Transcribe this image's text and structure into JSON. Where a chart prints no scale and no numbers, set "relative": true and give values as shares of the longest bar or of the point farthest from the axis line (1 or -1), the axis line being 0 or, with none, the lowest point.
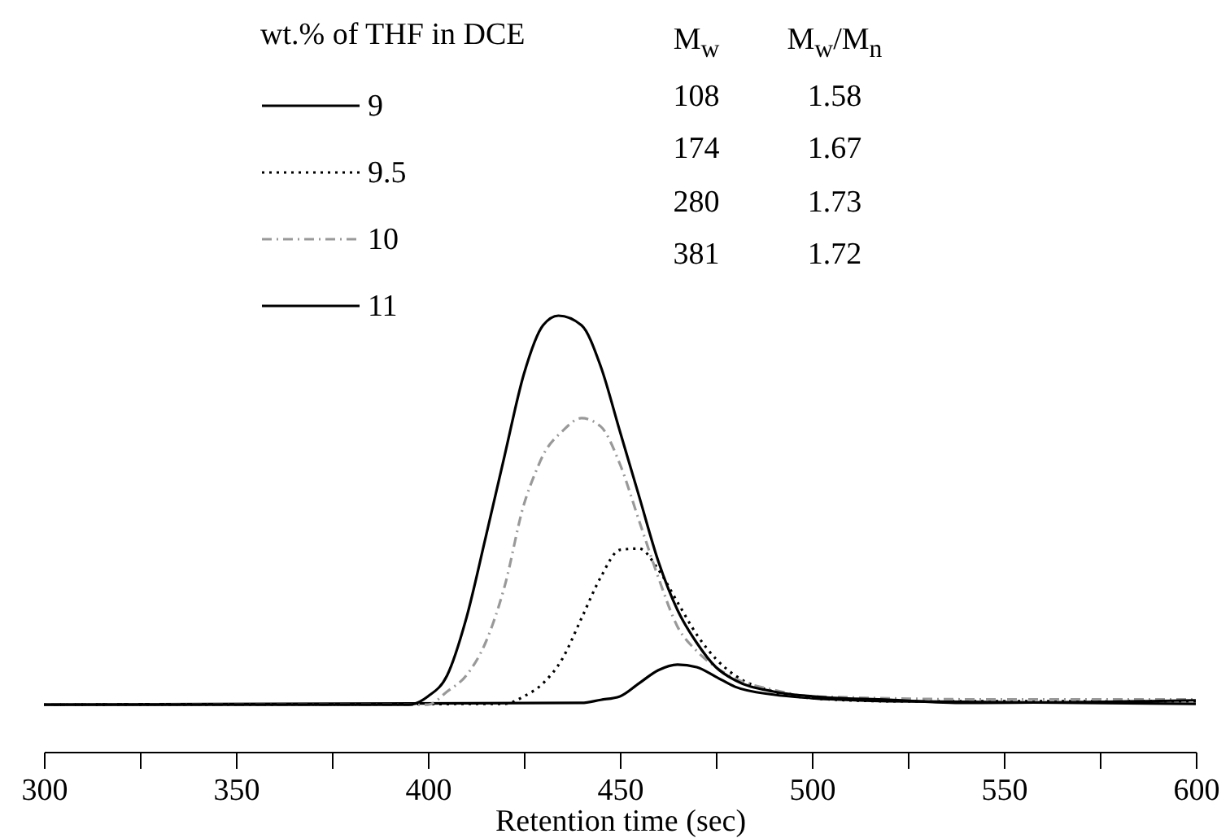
{
  "chart_data": {
    "type": "line",
    "xlabel": "Retention time (sec)",
    "legend_title": "wt.% of THF in DCE",
    "legend": "top",
    "relative": true,
    "xlim": [
      300,
      600
    ],
    "xticks": [
      300,
      {
        "value": 325,
        "label": null
      },
      350,
      {
        "value": 375,
        "label": null
      },
      400,
      {
        "value": 425,
        "label": null
      },
      450,
      {
        "value": 475,
        "label": null
      },
      500,
      {
        "value": 525,
        "label": null
      },
      550,
      {
        "value": 575,
        "label": null
      },
      600
    ],
    "annotations": [
      "M$_{w}$",
      "M$_{w}$/M$_{n}$",
      "108",
      "1.58",
      "174",
      "1.67",
      "280",
      "1.73",
      "381",
      "1.72"
    ],
    "series": [
      {
        "name": "9",
        "color": "#000000",
        "line_style": "solid",
        "x": [
          300,
          440,
          445,
          450,
          455,
          460,
          465,
          470,
          475,
          480,
          490,
          500,
          520,
          600
        ],
        "values": [
          0.108,
          0.112,
          0.119,
          0.127,
          0.157,
          0.187,
          0.2,
          0.194,
          0.172,
          0.149,
          0.131,
          0.123,
          0.116,
          0.11
        ]
      },
      {
        "name": "9.5",
        "color": "#000000",
        "line_style": "dotted",
        "x": [
          300,
          420,
          425,
          430,
          435,
          440,
          445,
          450,
          455,
          460,
          465,
          470,
          475,
          480,
          490,
          500,
          520,
          600
        ],
        "values": [
          0.108,
          0.11,
          0.127,
          0.157,
          0.213,
          0.306,
          0.4,
          0.463,
          0.466,
          0.418,
          0.343,
          0.269,
          0.213,
          0.175,
          0.138,
          0.123,
          0.116,
          0.116
        ]
      },
      {
        "name": "10",
        "color": "#999999",
        "line_style": "dashed",
        "x": [
          300,
          400,
          405,
          410,
          415,
          420,
          425,
          428,
          430,
          435,
          440,
          445,
          450,
          455,
          460,
          465,
          470,
          475,
          480,
          490,
          500,
          550,
          600
        ],
        "values": [
          0.108,
          0.108,
          0.138,
          0.175,
          0.25,
          0.38,
          0.567,
          0.64,
          0.68,
          0.735,
          0.765,
          0.746,
          0.66,
          0.53,
          0.4,
          0.287,
          0.231,
          0.194,
          0.168,
          0.142,
          0.127,
          0.12,
          0.12
        ]
      },
      {
        "name": "11",
        "color": "#000000",
        "line_style": "solid",
        "x": [
          300,
          395,
          400,
          405,
          410,
          415,
          420,
          425,
          430,
          434,
          440,
          445,
          450,
          455,
          460,
          465,
          470,
          475,
          480,
          490,
          500,
          520,
          540,
          600
        ],
        "values": [
          0.108,
          0.108,
          0.127,
          0.175,
          0.306,
          0.49,
          0.68,
          0.866,
          0.978,
          1,
          0.978,
          0.884,
          0.735,
          0.586,
          0.437,
          0.325,
          0.25,
          0.194,
          0.164,
          0.138,
          0.127,
          0.119,
          0.112,
          0.118
        ]
      }
    ]
  }
}
